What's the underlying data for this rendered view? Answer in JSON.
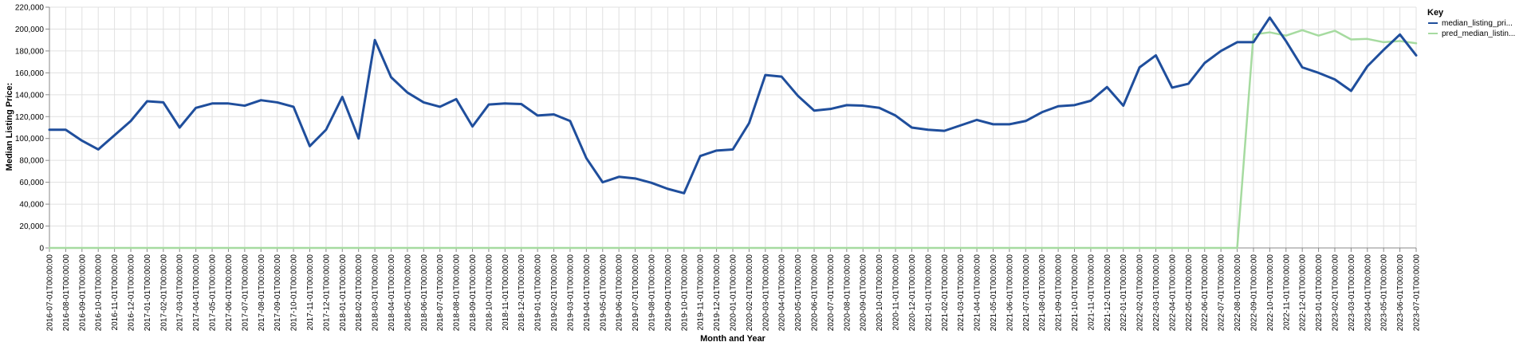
{
  "chart_data": {
    "type": "line",
    "xlabel": "Month and Year",
    "ylabel": "Median Listing Price:",
    "ylim": [
      0,
      220000
    ],
    "yticks": [
      "0",
      "20,000",
      "40,000",
      "60,000",
      "80,000",
      "100,000",
      "120,000",
      "140,000",
      "160,000",
      "180,000",
      "200,000",
      "220,000"
    ],
    "grid": true,
    "legend": {
      "title": "Key",
      "placement": "top-right"
    },
    "x": [
      "2016-07-01T00:00:00",
      "2016-08-01T00:00:00",
      "2016-09-01T00:00:00",
      "2016-10-01T00:00:00",
      "2016-11-01T00:00:00",
      "2016-12-01T00:00:00",
      "2017-01-01T00:00:00",
      "2017-02-01T00:00:00",
      "2017-03-01T00:00:00",
      "2017-04-01T00:00:00",
      "2017-05-01T00:00:00",
      "2017-06-01T00:00:00",
      "2017-07-01T00:00:00",
      "2017-08-01T00:00:00",
      "2017-09-01T00:00:00",
      "2017-10-01T00:00:00",
      "2017-11-01T00:00:00",
      "2017-12-01T00:00:00",
      "2018-01-01T00:00:00",
      "2018-02-01T00:00:00",
      "2018-03-01T00:00:00",
      "2018-04-01T00:00:00",
      "2018-05-01T00:00:00",
      "2018-06-01T00:00:00",
      "2018-07-01T00:00:00",
      "2018-08-01T00:00:00",
      "2018-09-01T00:00:00",
      "2018-10-01T00:00:00",
      "2018-11-01T00:00:00",
      "2018-12-01T00:00:00",
      "2019-01-01T00:00:00",
      "2019-02-01T00:00:00",
      "2019-03-01T00:00:00",
      "2019-04-01T00:00:00",
      "2019-05-01T00:00:00",
      "2019-06-01T00:00:00",
      "2019-07-01T00:00:00",
      "2019-08-01T00:00:00",
      "2019-09-01T00:00:00",
      "2019-10-01T00:00:00",
      "2019-11-01T00:00:00",
      "2019-12-01T00:00:00",
      "2020-01-01T00:00:00",
      "2020-02-01T00:00:00",
      "2020-03-01T00:00:00",
      "2020-04-01T00:00:00",
      "2020-05-01T00:00:00",
      "2020-06-01T00:00:00",
      "2020-07-01T00:00:00",
      "2020-08-01T00:00:00",
      "2020-09-01T00:00:00",
      "2020-10-01T00:00:00",
      "2020-11-01T00:00:00",
      "2020-12-01T00:00:00",
      "2021-01-01T00:00:00",
      "2021-02-01T00:00:00",
      "2021-03-01T00:00:00",
      "2021-04-01T00:00:00",
      "2021-05-01T00:00:00",
      "2021-06-01T00:00:00",
      "2021-07-01T00:00:00",
      "2021-08-01T00:00:00",
      "2021-09-01T00:00:00",
      "2021-10-01T00:00:00",
      "2021-11-01T00:00:00",
      "2021-12-01T00:00:00",
      "2022-01-01T00:00:00",
      "2022-02-01T00:00:00",
      "2022-03-01T00:00:00",
      "2022-04-01T00:00:00",
      "2022-05-01T00:00:00",
      "2022-06-01T00:00:00",
      "2022-07-01T00:00:00",
      "2022-08-01T00:00:00",
      "2022-09-01T00:00:00",
      "2022-10-01T00:00:00",
      "2022-11-01T00:00:00",
      "2022-12-01T00:00:00",
      "2023-01-01T00:00:00",
      "2023-02-01T00:00:00",
      "2023-03-01T00:00:00",
      "2023-04-01T00:00:00",
      "2023-05-01T00:00:00",
      "2023-06-01T00:00:00",
      "2023-07-01T00:00:00"
    ],
    "series": [
      {
        "name": "median_listing_pri...",
        "color": "#1f4e9c",
        "values": [
          108000,
          108000,
          98000,
          90000,
          103000,
          116000,
          134000,
          133000,
          110000,
          128000,
          132000,
          132000,
          130000,
          135000,
          133000,
          129000,
          93000,
          108000,
          138000,
          100000,
          190000,
          156000,
          142000,
          133000,
          129000,
          136000,
          111000,
          131000,
          132000,
          131500,
          121000,
          122000,
          116000,
          82000,
          60000,
          65000,
          63500,
          59500,
          54000,
          50000,
          84000,
          89000,
          90000,
          114000,
          158000,
          156500,
          139000,
          125500,
          127000,
          130500,
          130000,
          128000,
          121000,
          110000,
          108000,
          107000,
          112000,
          117000,
          113000,
          113000,
          116000,
          124000,
          129500,
          130500,
          134500,
          147000,
          130000,
          165000,
          176000,
          146500,
          150000,
          169000,
          180000,
          188000,
          188000,
          210500,
          189000,
          165000,
          160000,
          154000,
          143500,
          166000,
          181000,
          195000,
          176000
        ]
      },
      {
        "name": "pred_median_listin...",
        "color": "#a6dba0",
        "values": [
          0,
          0,
          0,
          0,
          0,
          0,
          0,
          0,
          0,
          0,
          0,
          0,
          0,
          0,
          0,
          0,
          0,
          0,
          0,
          0,
          0,
          0,
          0,
          0,
          0,
          0,
          0,
          0,
          0,
          0,
          0,
          0,
          0,
          0,
          0,
          0,
          0,
          0,
          0,
          0,
          0,
          0,
          0,
          0,
          0,
          0,
          0,
          0,
          0,
          0,
          0,
          0,
          0,
          0,
          0,
          0,
          0,
          0,
          0,
          0,
          0,
          0,
          0,
          0,
          0,
          0,
          0,
          0,
          0,
          0,
          0,
          0,
          0,
          0,
          195000,
          197000,
          194000,
          199000,
          194000,
          198500,
          190500,
          191000,
          188000,
          189000,
          187000
        ]
      }
    ]
  }
}
